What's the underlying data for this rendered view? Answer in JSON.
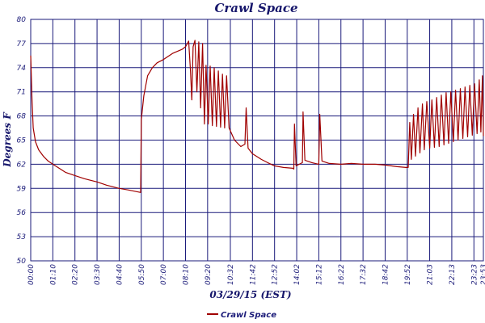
{
  "chart_data": {
    "type": "line",
    "title": "Crawl Space",
    "xlabel": "03/29/15 (EST)",
    "ylabel": "Degrees F",
    "ylim": [
      50,
      80
    ],
    "yticks": [
      50,
      53,
      56,
      59,
      62,
      65,
      68,
      71,
      74,
      77,
      80
    ],
    "xlim": [
      "00:00",
      "23:53"
    ],
    "xticks": [
      "00:00",
      "01:10",
      "02:20",
      "03:30",
      "04:40",
      "05:50",
      "07:00",
      "08:10",
      "09:20",
      "10:32",
      "11:42",
      "12:52",
      "14:02",
      "15:12",
      "16:22",
      "17:32",
      "18:42",
      "19:52",
      "21:03",
      "22:13",
      "23:23",
      "23:53"
    ],
    "grid": true,
    "legend_position": "bottom",
    "colors": {
      "series": "#a00000",
      "grid": "#1a1a7a",
      "text": "#16166b"
    },
    "series": [
      {
        "name": "Crawl Space",
        "points": [
          [
            "00:00",
            75.5
          ],
          [
            "00:04",
            70.0
          ],
          [
            "00:08",
            66.5
          ],
          [
            "00:15",
            64.8
          ],
          [
            "00:25",
            63.8
          ],
          [
            "00:40",
            63.0
          ],
          [
            "00:55",
            62.4
          ],
          [
            "01:10",
            62.0
          ],
          [
            "01:30",
            61.5
          ],
          [
            "01:50",
            61.0
          ],
          [
            "02:20",
            60.6
          ],
          [
            "02:50",
            60.2
          ],
          [
            "03:10",
            60.0
          ],
          [
            "03:30",
            59.8
          ],
          [
            "04:00",
            59.4
          ],
          [
            "04:20",
            59.2
          ],
          [
            "04:40",
            59.0
          ],
          [
            "05:10",
            58.8
          ],
          [
            "05:35",
            58.6
          ],
          [
            "05:48",
            58.5
          ],
          [
            "05:50",
            67.5
          ],
          [
            "05:58",
            70.5
          ],
          [
            "06:10",
            73.0
          ],
          [
            "06:25",
            74.0
          ],
          [
            "06:40",
            74.6
          ],
          [
            "07:00",
            75.0
          ],
          [
            "07:30",
            75.8
          ],
          [
            "08:00",
            76.3
          ],
          [
            "08:10",
            76.6
          ],
          [
            "08:20",
            77.3
          ],
          [
            "08:26",
            73.5
          ],
          [
            "08:30",
            70.0
          ],
          [
            "08:34",
            76.6
          ],
          [
            "08:40",
            77.4
          ],
          [
            "08:46",
            71.0
          ],
          [
            "08:52",
            77.2
          ],
          [
            "08:58",
            69.0
          ],
          [
            "09:04",
            77.0
          ],
          [
            "09:10",
            67.0
          ],
          [
            "09:15",
            74.3
          ],
          [
            "09:22",
            67.0
          ],
          [
            "09:28",
            74.2
          ],
          [
            "09:35",
            66.8
          ],
          [
            "09:41",
            74.0
          ],
          [
            "09:48",
            66.7
          ],
          [
            "09:54",
            73.6
          ],
          [
            "10:01",
            66.6
          ],
          [
            "10:07",
            73.2
          ],
          [
            "10:14",
            66.5
          ],
          [
            "10:20",
            73.0
          ],
          [
            "10:28",
            66.5
          ],
          [
            "10:45",
            65.0
          ],
          [
            "11:05",
            64.2
          ],
          [
            "11:18",
            64.5
          ],
          [
            "11:22",
            69.0
          ],
          [
            "11:28",
            64.0
          ],
          [
            "11:42",
            63.3
          ],
          [
            "12:10",
            62.6
          ],
          [
            "12:30",
            62.2
          ],
          [
            "12:52",
            61.8
          ],
          [
            "13:20",
            61.6
          ],
          [
            "13:50",
            61.5
          ],
          [
            "13:53",
            61.4
          ],
          [
            "13:55",
            67.0
          ],
          [
            "14:00",
            61.8
          ],
          [
            "14:10",
            62.0
          ],
          [
            "14:20",
            62.2
          ],
          [
            "14:22",
            68.5
          ],
          [
            "14:28",
            62.5
          ],
          [
            "14:50",
            62.2
          ],
          [
            "15:12",
            62.0
          ],
          [
            "15:15",
            68.2
          ],
          [
            "15:22",
            62.4
          ],
          [
            "15:45",
            62.1
          ],
          [
            "16:22",
            62.0
          ],
          [
            "16:55",
            62.1
          ],
          [
            "17:32",
            62.0
          ],
          [
            "18:10",
            62.0
          ],
          [
            "18:42",
            61.9
          ],
          [
            "19:20",
            61.7
          ],
          [
            "19:48",
            61.6
          ],
          [
            "19:55",
            61.6
          ],
          [
            "20:00",
            67.2
          ],
          [
            "20:05",
            62.6
          ],
          [
            "20:12",
            68.2
          ],
          [
            "20:18",
            63.0
          ],
          [
            "20:26",
            69.0
          ],
          [
            "20:32",
            63.4
          ],
          [
            "20:40",
            69.5
          ],
          [
            "20:46",
            63.8
          ],
          [
            "20:54",
            69.8
          ],
          [
            "21:03",
            64.0
          ],
          [
            "21:10",
            70.0
          ],
          [
            "21:18",
            64.1
          ],
          [
            "21:25",
            70.3
          ],
          [
            "21:33",
            64.2
          ],
          [
            "21:40",
            70.6
          ],
          [
            "21:48",
            64.4
          ],
          [
            "21:55",
            70.9
          ],
          [
            "22:03",
            64.6
          ],
          [
            "22:10",
            71.0
          ],
          [
            "22:18",
            64.8
          ],
          [
            "22:25",
            71.2
          ],
          [
            "22:33",
            65.0
          ],
          [
            "22:40",
            71.4
          ],
          [
            "22:48",
            65.2
          ],
          [
            "22:55",
            71.6
          ],
          [
            "23:03",
            65.4
          ],
          [
            "23:10",
            71.8
          ],
          [
            "23:18",
            65.6
          ],
          [
            "23:25",
            72.0
          ],
          [
            "23:33",
            65.8
          ],
          [
            "23:40",
            72.5
          ],
          [
            "23:45",
            66.0
          ],
          [
            "23:50",
            73.0
          ],
          [
            "23:53",
            65.5
          ]
        ]
      }
    ]
  }
}
